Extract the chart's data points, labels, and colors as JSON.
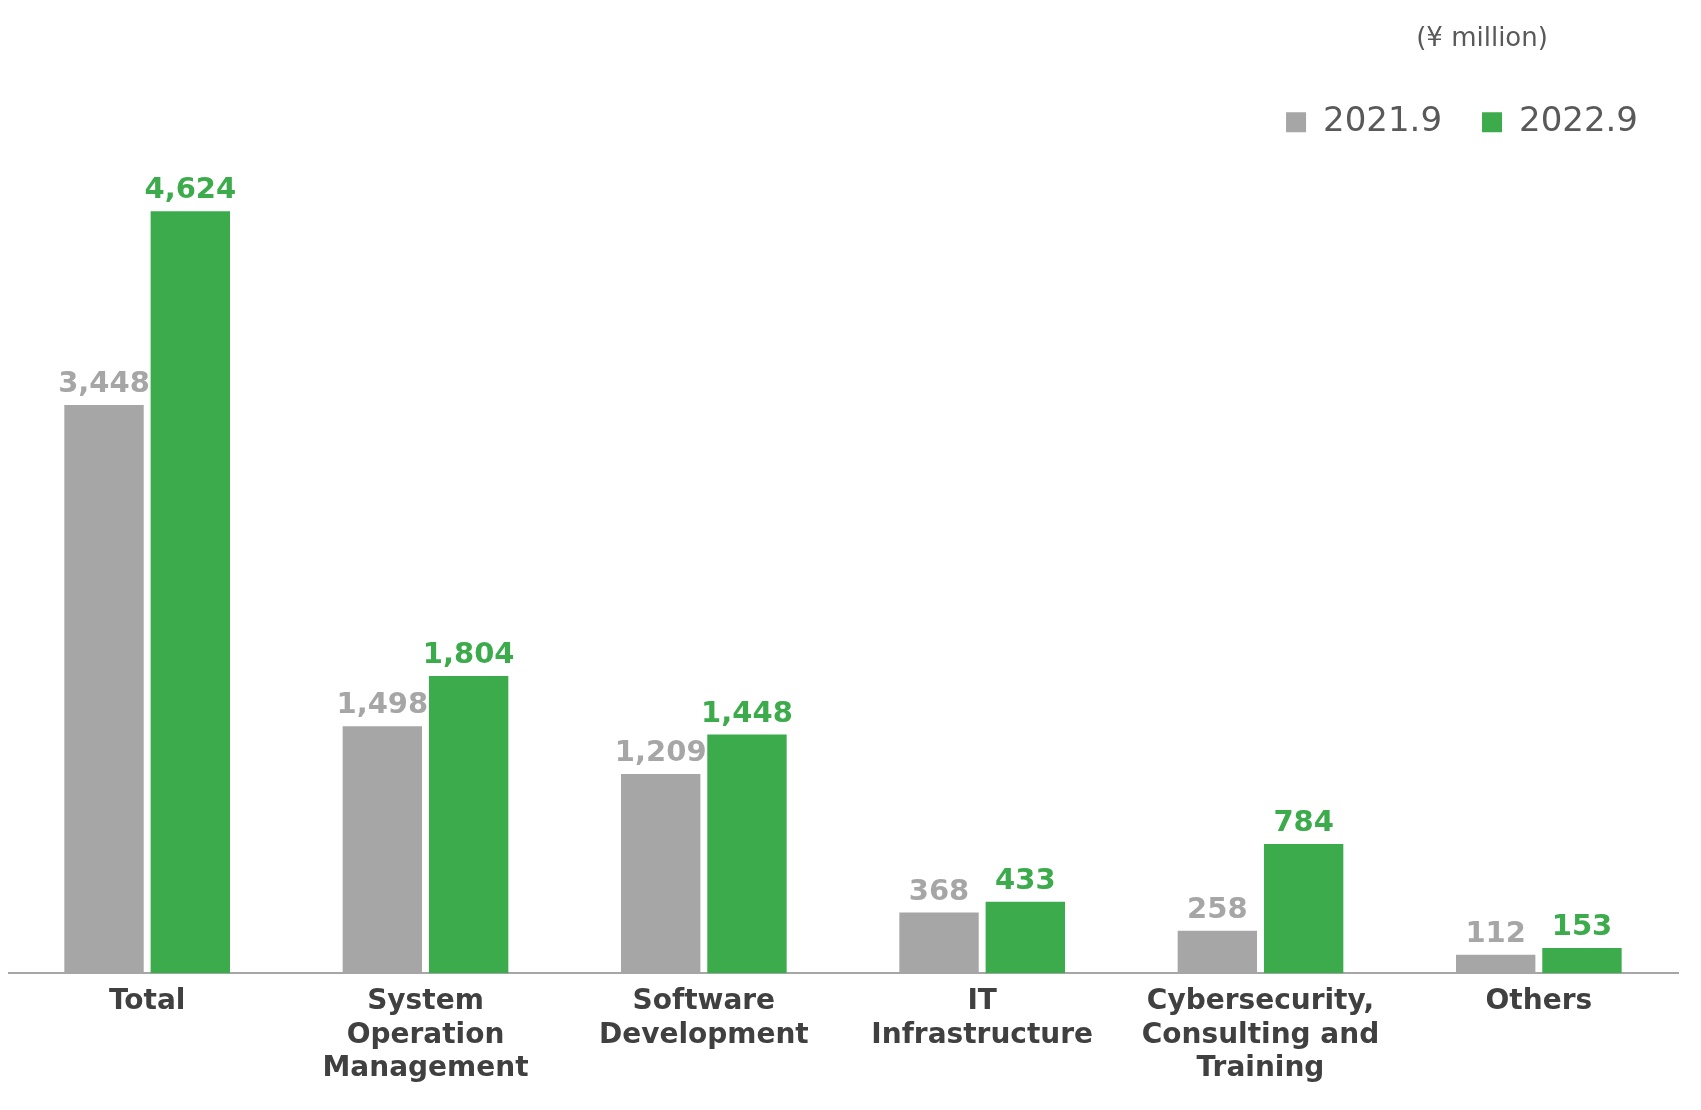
{
  "chart_data": {
    "type": "bar",
    "legend_title": "(¥ million)",
    "categories": [
      "Total",
      "System Operation Management",
      "Software Development",
      "IT Infrastructure",
      "Cybersecurity, Consulting and Training",
      "Others"
    ],
    "series": [
      {
        "name": "2021.9",
        "color": "#a6a6a6",
        "values": [
          3448,
          1498,
          1209,
          368,
          258,
          112
        ],
        "value_labels": [
          "3,448",
          "1,498",
          "1,209",
          "368",
          "258",
          "112"
        ]
      },
      {
        "name": "2022.9",
        "color": "#3cab4b",
        "values": [
          4624,
          1804,
          1448,
          433,
          784,
          153
        ],
        "value_labels": [
          "4,624",
          "1,804",
          "1,448",
          "433",
          "784",
          "153"
        ]
      }
    ],
    "legend": "top right",
    "grid": false,
    "tick_labels": "x"
  }
}
